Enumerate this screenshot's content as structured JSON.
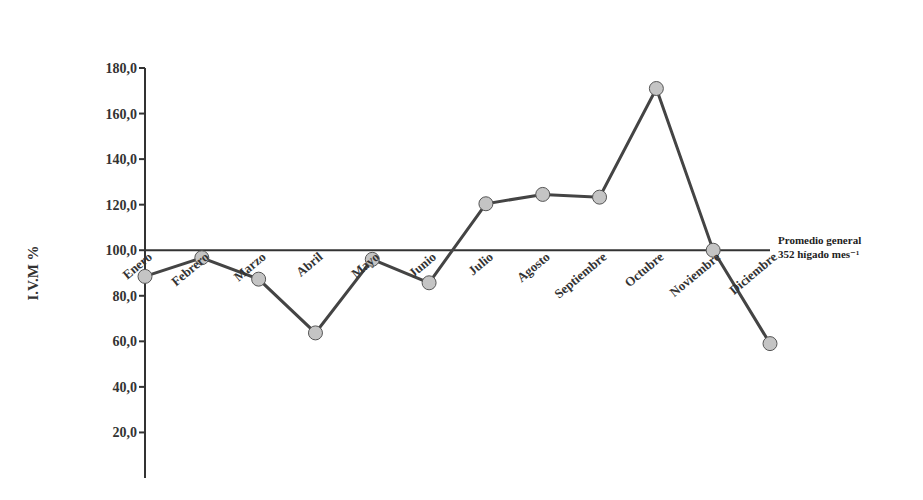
{
  "chart_data": {
    "type": "line",
    "y_label": "I.V.M %",
    "categories": [
      "Enero",
      "Febrero",
      "Marzo",
      "Abril",
      "Mayo",
      "Junio",
      "Julio",
      "Agosto",
      "Septiembre",
      "Octubre",
      "Noviembre",
      "Diciembre"
    ],
    "values": [
      88.5,
      96.7,
      87.3,
      63.7,
      96.0,
      85.7,
      120.4,
      124.5,
      123.3,
      171.0,
      100.0,
      59.0
    ],
    "color": "#444444",
    "marker": "circle",
    "ylim": [
      0,
      180
    ],
    "yticks": [
      {
        "value": 20,
        "label": "20,0"
      },
      {
        "value": 40,
        "label": "40,0"
      },
      {
        "value": 60,
        "label": "60,0"
      },
      {
        "value": 80,
        "label": "80,0"
      },
      {
        "value": 100,
        "label": "100,0"
      },
      {
        "value": 120,
        "label": "120,0"
      },
      {
        "value": 140,
        "label": "140,0"
      },
      {
        "value": 160,
        "label": "160,0"
      },
      {
        "value": 180,
        "label": "180,0"
      }
    ],
    "grid": false,
    "reference_line": {
      "value": 100,
      "label": [
        "Promedio general",
        "352 hígado mes⁻¹"
      ]
    }
  }
}
